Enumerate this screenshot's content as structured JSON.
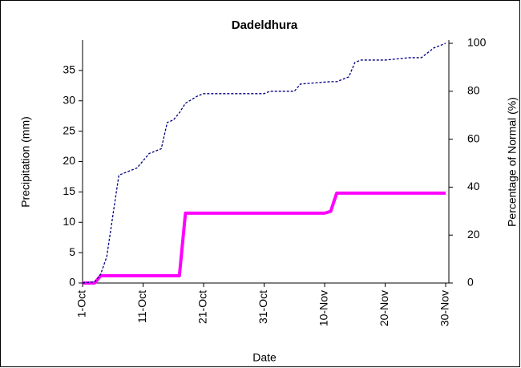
{
  "chart_data": {
    "type": "line",
    "title": "Dadeldhura",
    "xlabel": "Date",
    "ylabel": "Precipitation (mm)",
    "y2label": "Percentage of Normal (%)",
    "xlim": [
      0,
      60
    ],
    "xticks": [
      {
        "value": 0,
        "label": "1-Oct"
      },
      {
        "value": 10,
        "label": "11-Oct"
      },
      {
        "value": 20,
        "label": "21-Oct"
      },
      {
        "value": 30,
        "label": "31-Oct"
      },
      {
        "value": 40,
        "label": "10-Nov"
      },
      {
        "value": 50,
        "label": "20-Nov"
      },
      {
        "value": 60,
        "label": "30-Nov"
      }
    ],
    "ylim": [
      0,
      40
    ],
    "yticks": [
      0,
      5,
      10,
      15,
      20,
      25,
      30,
      35
    ],
    "y2lim": [
      0,
      100
    ],
    "y2ticks": [
      0,
      20,
      40,
      60,
      80,
      100
    ],
    "series": [
      {
        "color": "#ff00ff",
        "linestyle": "solid",
        "x": [
          0,
          2,
          3,
          16,
          17,
          18,
          40,
          41,
          42,
          60
        ],
        "values": [
          0,
          0,
          1.2,
          1.2,
          11.5,
          11.5,
          11.5,
          11.8,
          14.8,
          14.8
        ]
      },
      {
        "color": "#000080",
        "linestyle": "dashed",
        "axis": "y2",
        "x": [
          0,
          2,
          3,
          4,
          5,
          6,
          7,
          9,
          10,
          11,
          13,
          14,
          15,
          16,
          17,
          19,
          20,
          21,
          30,
          31,
          35,
          36,
          41,
          42,
          44,
          45,
          46,
          50,
          54,
          56,
          58,
          60
        ],
        "values": [
          0,
          0.5,
          3.7,
          11,
          28,
          45,
          46,
          48,
          51,
          54,
          56,
          67,
          68,
          71,
          75,
          78,
          79,
          79,
          79,
          80,
          80,
          83,
          84,
          84,
          86,
          92,
          93,
          93,
          94,
          94,
          98,
          100
        ]
      }
    ]
  }
}
